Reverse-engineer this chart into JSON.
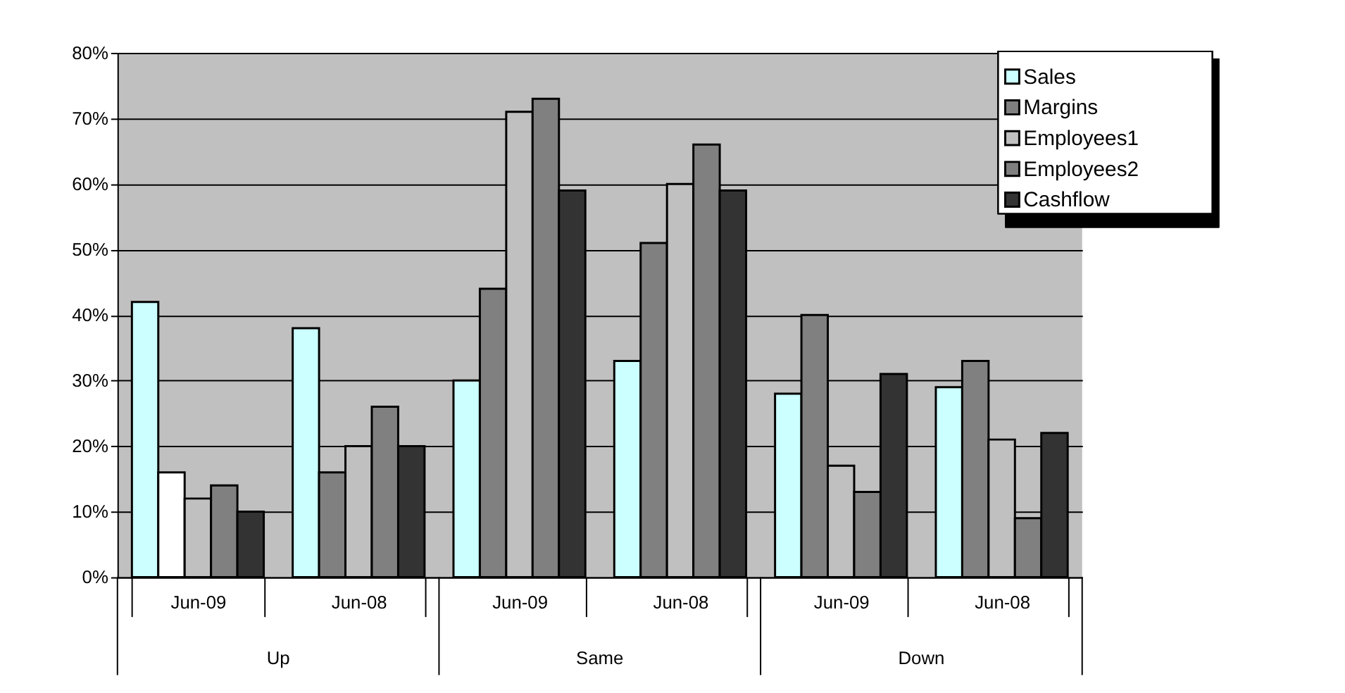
{
  "chart_data": {
    "type": "bar",
    "categories": [
      "Jun-09",
      "Jun-08",
      "Jun-09",
      "Jun-08",
      "Jun-09",
      "Jun-08"
    ],
    "annotations": [
      "Up",
      "Same",
      "Down"
    ],
    "series": [
      {
        "name": "Sales",
        "color": "#ccffff",
        "values": [
          42,
          38,
          30,
          33,
          28,
          29
        ]
      },
      {
        "name": "Margins",
        "color": "#808080",
        "colors": [
          "#ffffff",
          "#808080",
          "#808080",
          "#808080",
          "#808080",
          "#808080"
        ],
        "values": [
          16,
          16,
          44,
          51,
          40,
          33
        ]
      },
      {
        "name": "Employees1",
        "color": "#c0c0c0",
        "values": [
          12,
          20,
          71,
          60,
          17,
          21
        ]
      },
      {
        "name": "Employees2",
        "color": "#808080",
        "values": [
          14,
          26,
          73,
          66,
          13,
          9
        ]
      },
      {
        "name": "Cashflow",
        "color": "#333333",
        "values": [
          10,
          20,
          59,
          59,
          31,
          22
        ]
      }
    ],
    "ylim": [
      0,
      80
    ],
    "yticks": [
      {
        "value": 0,
        "label": "0%"
      },
      {
        "value": 10,
        "label": "10%"
      },
      {
        "value": 20,
        "label": "20%"
      },
      {
        "value": 30,
        "label": "30%"
      },
      {
        "value": 40,
        "label": "40%"
      },
      {
        "value": 50,
        "label": "50%"
      },
      {
        "value": 60,
        "label": "60%"
      },
      {
        "value": 70,
        "label": "70%"
      },
      {
        "value": 80,
        "label": "80%"
      }
    ],
    "grid": "y",
    "legend": "top right"
  }
}
